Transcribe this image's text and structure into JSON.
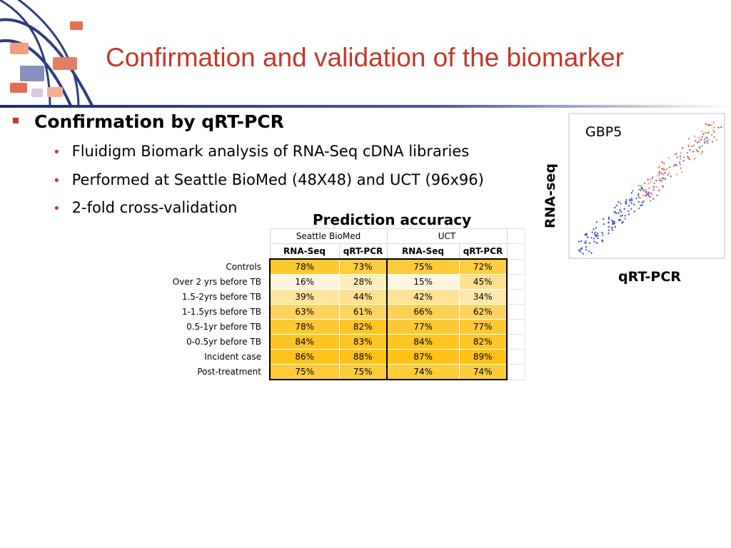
{
  "title": "Confirmation and validation of the biomarker",
  "bullets": {
    "main": "Confirmation by qRT-PCR",
    "subs": [
      "Fluidigm Biomark analysis of RNA-Seq cDNA libraries",
      "Performed at Seattle BioMed (48X48) and UCT (96x96)",
      "2-fold cross-validation"
    ]
  },
  "table": {
    "title": "Prediction accuracy",
    "groups": [
      "Seattle BioMed",
      "UCT"
    ],
    "methods": [
      "RNA-Seq",
      "qRT-PCR",
      "RNA-Seq",
      "qRT-PCR"
    ],
    "rows": [
      {
        "label": "Controls",
        "values": [
          "78%",
          "73%",
          "75%",
          "72%"
        ]
      },
      {
        "label": "Over 2 yrs before TB",
        "values": [
          "16%",
          "28%",
          "15%",
          "45%"
        ]
      },
      {
        "label": "1.5-2yrs before TB",
        "values": [
          "39%",
          "44%",
          "42%",
          "34%"
        ]
      },
      {
        "label": "1-1.5yrs before TB",
        "values": [
          "63%",
          "61%",
          "66%",
          "62%"
        ]
      },
      {
        "label": "0.5-1yr before TB",
        "values": [
          "78%",
          "82%",
          "77%",
          "77%"
        ]
      },
      {
        "label": "0-0.5yr before TB",
        "values": [
          "84%",
          "83%",
          "84%",
          "82%"
        ]
      },
      {
        "label": "Incident case",
        "values": [
          "86%",
          "88%",
          "87%",
          "89%"
        ]
      },
      {
        "label": "Post-treatment",
        "values": [
          "75%",
          "75%",
          "74%",
          "74%"
        ]
      }
    ]
  },
  "scatter": {
    "gene_label": "GBP5",
    "xlabel": "qRT-PCR",
    "ylabel": "RNA-seq"
  },
  "colors": {
    "title": "#c0392b",
    "bullet": "#c0392b",
    "cell_high": "#fec010",
    "cell_low": "#fff6e0"
  }
}
